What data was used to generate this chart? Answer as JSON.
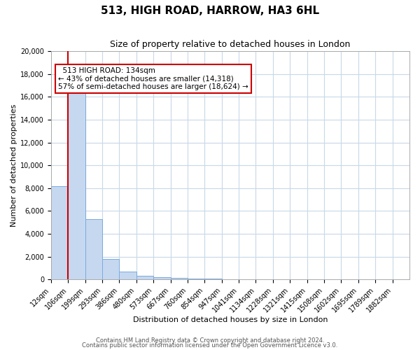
{
  "title": "513, HIGH ROAD, HARROW, HA3 6HL",
  "subtitle": "Size of property relative to detached houses in London",
  "xlabel": "Distribution of detached houses by size in London",
  "ylabel": "Number of detached properties",
  "bar_labels": [
    "12sqm",
    "106sqm",
    "199sqm",
    "293sqm",
    "386sqm",
    "480sqm",
    "573sqm",
    "667sqm",
    "760sqm",
    "854sqm",
    "947sqm",
    "1041sqm",
    "1134sqm",
    "1228sqm",
    "1321sqm",
    "1415sqm",
    "1508sqm",
    "1602sqm",
    "1695sqm",
    "1789sqm",
    "1882sqm"
  ],
  "bar_values": [
    8200,
    16600,
    5300,
    1800,
    700,
    350,
    230,
    130,
    100,
    80,
    0,
    0,
    0,
    0,
    0,
    0,
    0,
    0,
    0,
    0,
    0
  ],
  "bar_color": "#c5d8f0",
  "bar_edge_color": "#7aabdc",
  "annotation_title": "513 HIGH ROAD: 134sqm",
  "annotation_line1": "← 43% of detached houses are smaller (14,318)",
  "annotation_line2": "57% of semi-detached houses are larger (18,624) →",
  "annotation_box_color": "#ffffff",
  "annotation_box_edge": "#cc0000",
  "red_line_color": "#cc0000",
  "ylim": [
    0,
    20000
  ],
  "yticks": [
    0,
    2000,
    4000,
    6000,
    8000,
    10000,
    12000,
    14000,
    16000,
    18000,
    20000
  ],
  "footer1": "Contains HM Land Registry data © Crown copyright and database right 2024.",
  "footer2": "Contains public sector information licensed under the Open Government Licence v3.0.",
  "bg_color": "#ffffff",
  "grid_color": "#c8d8e8",
  "title_fontsize": 11,
  "subtitle_fontsize": 9,
  "axis_label_fontsize": 8,
  "tick_fontsize": 7,
  "annotation_fontsize": 7.5,
  "footer_fontsize": 6
}
